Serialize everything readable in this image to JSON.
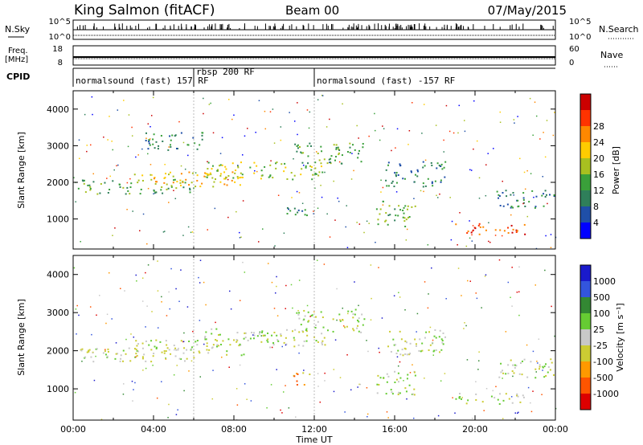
{
  "header": {
    "station": "King Salmon (fitACF)",
    "beam": "Beam 00",
    "date": "07/May/2015"
  },
  "aux_panels": {
    "nsky_label": "N.Sky",
    "nsky_ticks": [
      "10^5",
      "10^0"
    ],
    "nsearch_label": "N.Search",
    "nsearch_ticks": [
      "10^5",
      "10^0"
    ],
    "freq_label": "Freq.",
    "freq_unit": "[MHz]",
    "freq_ticks": [
      "18",
      "8"
    ],
    "nave_label": "Nave",
    "nave_ticks": [
      "60",
      "0"
    ],
    "cpid_label": "CPID"
  },
  "cpid_segments": [
    {
      "label": "normalsound (fast) 157 RF",
      "start": 0,
      "end": 12
    },
    {
      "label": "rbsp 200 RF",
      "start": 6,
      "end": 6.1
    },
    {
      "label": "normalsound (fast) -157 RF",
      "start": 12,
      "end": 24
    }
  ],
  "colors": {
    "power": [
      "#0000ff",
      "#1f4fa8",
      "#2f7f5a",
      "#3aa03a",
      "#a8c020",
      "#ffcc00",
      "#ff8800",
      "#ff3300",
      "#cc0000"
    ],
    "velocity": [
      "#1a1acc",
      "#3355dd",
      "#338833",
      "#66cc33",
      "#c8c8c8",
      "#cccc33",
      "#ff9900",
      "#ff5500",
      "#dd0000"
    ]
  },
  "chart_data": [
    {
      "type": "heatmap",
      "name": "power",
      "ylabel": "Slant Range [km]",
      "xlabel": "Time UT",
      "x_ticks": [
        "00:00",
        "04:00",
        "08:00",
        "12:00",
        "16:00",
        "20:00",
        "00:00"
      ],
      "xlim_hours": [
        0,
        24
      ],
      "ylim": [
        180,
        4500
      ],
      "y_ticks": [
        1000,
        2000,
        3000,
        4000
      ],
      "colorbar": {
        "label": "Power [dB]",
        "ticks": [
          "4",
          "8",
          "12",
          "16",
          "20",
          "24",
          "28"
        ]
      },
      "echo_regions": [
        {
          "t0": 0.2,
          "t1": 6.0,
          "r0": 1700,
          "r1": 2100,
          "level": 3
        },
        {
          "t0": 3.0,
          "t1": 8.5,
          "r0": 1900,
          "r1": 2300,
          "level": 5
        },
        {
          "t0": 6.5,
          "t1": 12.5,
          "r0": 2100,
          "r1": 2600,
          "level": 4
        },
        {
          "t0": 11.0,
          "t1": 14.5,
          "r0": 2500,
          "r1": 3100,
          "level": 3
        },
        {
          "t0": 3.5,
          "t1": 6.5,
          "r0": 2900,
          "r1": 3400,
          "level": 2
        },
        {
          "t0": 15.5,
          "t1": 18.5,
          "r0": 1900,
          "r1": 2600,
          "level": 2
        },
        {
          "t0": 10.5,
          "t1": 12.0,
          "r0": 1100,
          "r1": 1450,
          "level": 2
        },
        {
          "t0": 15.0,
          "t1": 17.0,
          "r0": 800,
          "r1": 1500,
          "level": 3
        },
        {
          "t0": 19.0,
          "t1": 22.5,
          "r0": 600,
          "r1": 900,
          "level": 7
        },
        {
          "t0": 21.0,
          "t1": 24.0,
          "r0": 1300,
          "r1": 1800,
          "level": 2
        }
      ]
    },
    {
      "type": "heatmap",
      "name": "velocity",
      "ylabel": "Slant Range [km]",
      "xlabel": "Time UT",
      "x_ticks": [
        "00:00",
        "04:00",
        "08:00",
        "12:00",
        "16:00",
        "20:00",
        "00:00"
      ],
      "xlim_hours": [
        0,
        24
      ],
      "ylim": [
        180,
        4500
      ],
      "y_ticks": [
        1000,
        2000,
        3000,
        4000
      ],
      "colorbar": {
        "label": "Velocity [m s⁻¹]",
        "ticks": [
          "1000",
          "500",
          "100",
          "25",
          "-25",
          "-100",
          "-500",
          "-1000"
        ]
      },
      "echo_regions": [
        {
          "t0": 0.2,
          "t1": 6.0,
          "r0": 1700,
          "r1": 2100,
          "level": 4
        },
        {
          "t0": 3.0,
          "t1": 8.5,
          "r0": 1900,
          "r1": 2300,
          "level": 4
        },
        {
          "t0": 6.5,
          "t1": 12.5,
          "r0": 2100,
          "r1": 2600,
          "level": 4
        },
        {
          "t0": 11.0,
          "t1": 14.5,
          "r0": 2500,
          "r1": 3100,
          "level": 4
        },
        {
          "t0": 15.5,
          "t1": 18.5,
          "r0": 1900,
          "r1": 2600,
          "level": 4
        },
        {
          "t0": 10.8,
          "t1": 11.8,
          "r0": 1100,
          "r1": 1450,
          "level": 6
        },
        {
          "t0": 15.0,
          "t1": 17.0,
          "r0": 800,
          "r1": 1500,
          "level": 4
        },
        {
          "t0": 19.0,
          "t1": 22.5,
          "r0": 600,
          "r1": 900,
          "level": 4
        },
        {
          "t0": 21.0,
          "t1": 24.0,
          "r0": 1300,
          "r1": 1800,
          "level": 4
        }
      ]
    }
  ]
}
